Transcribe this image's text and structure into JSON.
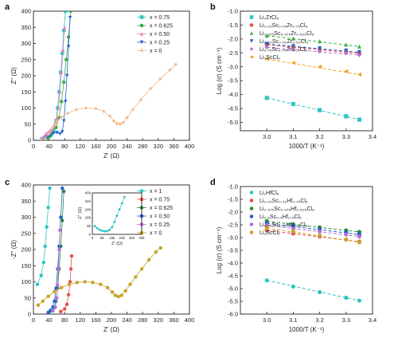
{
  "panels": [
    {
      "id": "a",
      "label": "a"
    },
    {
      "id": "b",
      "label": "b"
    },
    {
      "id": "c",
      "label": "c"
    },
    {
      "id": "d",
      "label": "d"
    }
  ],
  "colors": {
    "teal": "#2ec4c4",
    "green": "#3cb043",
    "pink": "#f07fbf",
    "blue": "#2060d0",
    "peach": "#f5b98a",
    "red": "#e8504a",
    "orange": "#f0a020",
    "purple": "#b86fd6",
    "forest": "#2a8a3a",
    "gold": "#c9a227",
    "lime": "#66cc55"
  },
  "chart_data": [
    {
      "panel": "a",
      "type": "scatter",
      "xlabel": "Z' (Ω)",
      "ylabel": "Z'' (Ω)",
      "xlim": [
        0,
        400
      ],
      "ylim": [
        0,
        400
      ],
      "xticks": [
        0,
        40,
        80,
        120,
        160,
        200,
        240,
        280,
        320,
        360,
        400
      ],
      "yticks": [
        0,
        50,
        100,
        150,
        200,
        250,
        300,
        350,
        400
      ],
      "legend_position": "top-right",
      "series": [
        {
          "name": "x = 0.75",
          "marker": "square",
          "color": "#2ec4c4",
          "points": [
            [
              22,
              5
            ],
            [
              28,
              8
            ],
            [
              34,
              6
            ],
            [
              40,
              12
            ],
            [
              46,
              20
            ],
            [
              52,
              35
            ],
            [
              58,
              60
            ],
            [
              62,
              100
            ],
            [
              66,
              150
            ],
            [
              70,
              210
            ],
            [
              74,
              270
            ],
            [
              78,
              340
            ],
            [
              82,
              400
            ]
          ]
        },
        {
          "name": "x = 0.625",
          "marker": "circle",
          "color": "#3cb043",
          "points": [
            [
              25,
              6
            ],
            [
              32,
              9
            ],
            [
              38,
              8
            ],
            [
              44,
              14
            ],
            [
              50,
              24
            ],
            [
              58,
              40
            ],
            [
              66,
              70
            ],
            [
              72,
              120
            ],
            [
              78,
              180
            ],
            [
              84,
              250
            ],
            [
              90,
              320
            ],
            [
              96,
              400
            ]
          ]
        },
        {
          "name": "x = 0.50",
          "marker": "triangle",
          "color": "#f07fbf",
          "points": [
            [
              20,
              3
            ],
            [
              24,
              8
            ],
            [
              28,
              14
            ],
            [
              32,
              20
            ],
            [
              36,
              24
            ],
            [
              40,
              28
            ],
            [
              44,
              32
            ],
            [
              48,
              38
            ],
            [
              52,
              45
            ],
            [
              56,
              55
            ],
            [
              60,
              70
            ],
            [
              64,
              100
            ],
            [
              68,
              150
            ],
            [
              72,
              210
            ],
            [
              76,
              280
            ],
            [
              80,
              350
            ]
          ]
        },
        {
          "name": "x = 0.25",
          "marker": "triangle-down",
          "color": "#2060d0",
          "points": [
            [
              30,
              5
            ],
            [
              36,
              10
            ],
            [
              44,
              16
            ],
            [
              52,
              22
            ],
            [
              60,
              24
            ],
            [
              68,
              20
            ],
            [
              74,
              26
            ],
            [
              78,
              60
            ],
            [
              82,
              120
            ],
            [
              86,
              200
            ],
            [
              90,
              290
            ],
            [
              94,
              380
            ]
          ]
        },
        {
          "name": "x = 0",
          "marker": "diamond",
          "color": "#f5b98a",
          "points": [
            [
              30,
              5
            ],
            [
              40,
              20
            ],
            [
              50,
              40
            ],
            [
              60,
              58
            ],
            [
              72,
              72
            ],
            [
              88,
              84
            ],
            [
              110,
              95
            ],
            [
              135,
              100
            ],
            [
              160,
              98
            ],
            [
              180,
              90
            ],
            [
              196,
              75
            ],
            [
              206,
              60
            ],
            [
              214,
              52
            ],
            [
              222,
              50
            ],
            [
              230,
              55
            ],
            [
              240,
              70
            ],
            [
              255,
              95
            ],
            [
              275,
              125
            ],
            [
              300,
              160
            ],
            [
              325,
              190
            ],
            [
              350,
              218
            ],
            [
              365,
              235
            ]
          ]
        }
      ]
    },
    {
      "panel": "b",
      "type": "line",
      "xlabel": "1000/T (K⁻¹)",
      "ylabel": "Log (σ) (S cm⁻¹)",
      "xlim": [
        2.9,
        3.4
      ],
      "ylim": [
        -5.3,
        -1.0
      ],
      "xticks": [
        3.0,
        3.1,
        3.2,
        3.3,
        3.4
      ],
      "yticks": [
        -1.0,
        -1.5,
        -2.0,
        -2.5,
        -3.0,
        -3.5,
        -4.0,
        -4.5,
        -5.0
      ],
      "legend_position": "top-right",
      "x": [
        3.0,
        3.1,
        3.2,
        3.3,
        3.35
      ],
      "series": [
        {
          "name": "Li₂ZrCl₆",
          "marker": "square",
          "color": "#2ec4c4",
          "values": [
            -4.12,
            -4.34,
            -4.56,
            -4.78,
            -4.9
          ]
        },
        {
          "name": "Li₂.₂₅Sc₀.₂₅Zr₀.₇₅Cl₆",
          "marker": "circle",
          "color": "#e8504a",
          "values": [
            -2.2,
            -2.3,
            -2.38,
            -2.46,
            -2.52
          ]
        },
        {
          "name": "Li₂.₃₇₅Sc₀.₃₇₅Zr₀.₆₂₅Cl₆",
          "marker": "triangle",
          "color": "#3cb043",
          "values": [
            -1.88,
            -1.98,
            -2.08,
            -2.2,
            -2.27
          ]
        },
        {
          "name": "Li₂.₅₀Sc₀.₅₀Zr₀.₅₀Cl₆",
          "marker": "triangle-down",
          "color": "#2060d0",
          "values": [
            -2.18,
            -2.26,
            -2.34,
            -2.42,
            -2.48
          ]
        },
        {
          "name": "Li₂.₇₅Sc₀.₇₅Zr₀.₂₅Cl₆",
          "marker": "diamond",
          "color": "#b86fd6",
          "values": [
            -2.3,
            -2.38,
            -2.45,
            -2.52,
            -2.58
          ]
        },
        {
          "name": "Li₃ScCl₆",
          "marker": "triangle-left",
          "color": "#f0a020",
          "values": [
            -2.72,
            -2.86,
            -3.0,
            -3.16,
            -3.28
          ]
        }
      ]
    },
    {
      "panel": "c",
      "type": "scatter",
      "xlabel": "Z' (Ω)",
      "ylabel": "-Z'' (Ω)",
      "xlim": [
        0,
        400
      ],
      "ylim": [
        0,
        400
      ],
      "xticks": [
        0,
        40,
        80,
        120,
        160,
        200,
        240,
        280,
        320,
        360,
        400
      ],
      "yticks": [
        0,
        50,
        100,
        150,
        200,
        250,
        300,
        350,
        400
      ],
      "legend_position": "top-right",
      "series": [
        {
          "name": "x = 1",
          "color": "#2ec4c4",
          "points": [
            [
              10,
              92
            ],
            [
              20,
              120
            ],
            [
              26,
              160
            ],
            [
              30,
              210
            ],
            [
              34,
              270
            ],
            [
              38,
              330
            ],
            [
              42,
              390
            ]
          ]
        },
        {
          "name": "x = 0.75",
          "color": "#e8504a",
          "points": [
            [
              70,
              8
            ],
            [
              80,
              16
            ],
            [
              86,
              30
            ],
            [
              90,
              60
            ],
            [
              94,
              100
            ],
            [
              96,
              140
            ],
            [
              98,
              180
            ]
          ]
        },
        {
          "name": "x = 0.625",
          "color": "#2a8a3a",
          "points": [
            [
              40,
              6
            ],
            [
              48,
              10
            ],
            [
              54,
              20
            ],
            [
              58,
              40
            ],
            [
              62,
              80
            ],
            [
              66,
              140
            ],
            [
              70,
              210
            ],
            [
              74,
              290
            ],
            [
              78,
              380
            ]
          ]
        },
        {
          "name": "x = 0.50",
          "color": "#2060d0",
          "points": [
            [
              38,
              5
            ],
            [
              44,
              12
            ],
            [
              50,
              22
            ],
            [
              54,
              40
            ],
            [
              58,
              80
            ],
            [
              62,
              140
            ],
            [
              66,
              210
            ],
            [
              70,
              300
            ],
            [
              74,
              390
            ]
          ]
        },
        {
          "name": "x = 0.25",
          "color": "#b86fd6",
          "points": [
            [
              50,
              10
            ],
            [
              56,
              22
            ],
            [
              60,
              50
            ],
            [
              62,
              90
            ],
            [
              64,
              140
            ],
            [
              66,
              200
            ],
            [
              68,
              260
            ]
          ]
        },
        {
          "name": "x = 0",
          "color": "#c9a227",
          "points": [
            [
              12,
              28
            ],
            [
              24,
              40
            ],
            [
              38,
              55
            ],
            [
              54,
              70
            ],
            [
              72,
              82
            ],
            [
              92,
              92
            ],
            [
              112,
              98
            ],
            [
              132,
              100
            ],
            [
              152,
              98
            ],
            [
              172,
              92
            ],
            [
              190,
              82
            ],
            [
              202,
              68
            ],
            [
              210,
              58
            ],
            [
              218,
              54
            ],
            [
              226,
              58
            ],
            [
              236,
              72
            ],
            [
              248,
              92
            ],
            [
              262,
              115
            ],
            [
              278,
              140
            ],
            [
              296,
              168
            ],
            [
              314,
              192
            ],
            [
              326,
              205
            ]
          ]
        }
      ],
      "inset": {
        "type": "scatter",
        "xlabel": "Z' (Ω)",
        "ylabel": "-Z'' (Ω)",
        "xlim": [
          0,
          40000
        ],
        "ylim": [
          0,
          40000
        ],
        "xticks": [
          "0",
          "8k",
          "16k",
          "24k",
          "32k",
          "40k"
        ],
        "yticks": [
          "0",
          "8k",
          "16k",
          "24k",
          "32k",
          "40k"
        ],
        "color": "#2ec4c4",
        "points": [
          [
            2000,
            8000
          ],
          [
            4000,
            6000
          ],
          [
            6000,
            4200
          ],
          [
            8000,
            3400
          ],
          [
            10000,
            3000
          ],
          [
            12000,
            3200
          ],
          [
            14000,
            4200
          ],
          [
            16000,
            7000
          ],
          [
            18000,
            12000
          ],
          [
            20000,
            18000
          ],
          [
            22000,
            24000
          ],
          [
            24000,
            30000
          ],
          [
            26000,
            36000
          ]
        ]
      }
    },
    {
      "panel": "d",
      "type": "line",
      "xlabel": "1000/T (K⁻¹)",
      "ylabel": "Log (σ) (S cm⁻¹)",
      "xlim": [
        2.9,
        3.4
      ],
      "ylim": [
        -6.0,
        -1.0
      ],
      "xticks": [
        3.0,
        3.1,
        3.2,
        3.3,
        3.4
      ],
      "yticks": [
        -1.0,
        -1.5,
        -2.0,
        -2.5,
        -3.0,
        -3.5,
        -4.0,
        -4.5,
        -5.0,
        -5.5,
        -6.0
      ],
      "legend_position": "top-right",
      "x": [
        3.0,
        3.1,
        3.2,
        3.3,
        3.35
      ],
      "series": [
        {
          "name": "Li₂HfCl₆",
          "color": "#2ec4c4",
          "values": [
            -4.68,
            -4.92,
            -5.14,
            -5.36,
            -5.47
          ]
        },
        {
          "name": "Li₂.₂₅Sc₀.₂₅Hf₀.₇₅Cl₆",
          "color": "#e8504a",
          "values": [
            -2.72,
            -2.84,
            -2.96,
            -3.08,
            -3.16
          ]
        },
        {
          "name": "Li₂.₃₇₅Sc₀.₃₇₅Hf₀.₆₂₅Cl₆",
          "color": "#2a8a3a",
          "values": [
            -2.36,
            -2.48,
            -2.6,
            -2.72,
            -2.78
          ]
        },
        {
          "name": "Li₂.₅Sc₀.₅Hf₀.₅Cl₆",
          "color": "#2060d0",
          "values": [
            -2.44,
            -2.56,
            -2.68,
            -2.8,
            -2.88
          ]
        },
        {
          "name": "Li₂.₇₅Sc₀.₇₅Hf₀.₂₅Cl₆",
          "color": "#b86fd6",
          "values": [
            -2.52,
            -2.64,
            -2.76,
            -2.88,
            -2.96
          ]
        },
        {
          "name": "Li₃ScCl₆",
          "color": "#c9a227",
          "values": [
            -2.62,
            -2.76,
            -2.92,
            -3.08,
            -3.18
          ]
        }
      ]
    }
  ]
}
